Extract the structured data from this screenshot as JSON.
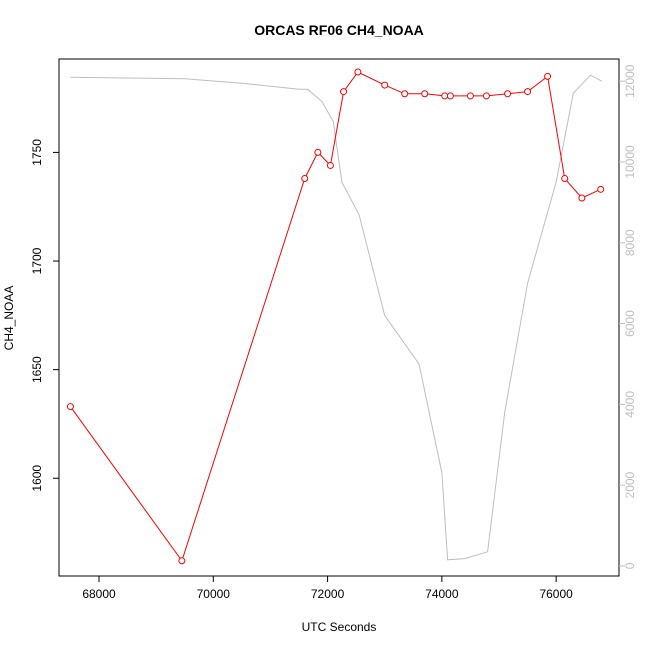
{
  "chart_data": {
    "type": "line",
    "title": "ORCAS RF06 CH4_NOAA",
    "xlabel": "UTC Seconds",
    "ylabel": "CH4_NOAA",
    "xlim": [
      67300,
      77100
    ],
    "ylim": [
      1555,
      1793
    ],
    "y2lim": [
      -250,
      12550
    ],
    "x_ticks": [
      68000,
      70000,
      72000,
      74000,
      76000
    ],
    "y_ticks": [
      1600,
      1650,
      1700,
      1750
    ],
    "y2_ticks": [
      0,
      2000,
      4000,
      6000,
      8000,
      10000,
      12000
    ],
    "series": [
      {
        "color": "#ff0000",
        "marker": "open-circle",
        "axis": "left",
        "x": [
          67500,
          69450,
          71600,
          71830,
          72050,
          72280,
          72530,
          73000,
          73350,
          73700,
          74050,
          74150,
          74500,
          74780,
          75150,
          75500,
          75850,
          76150,
          76450,
          76780
        ],
        "values": [
          1633,
          1562,
          1738,
          1750,
          1744,
          1778,
          1787,
          1781,
          1777,
          1777,
          1776,
          1776,
          1776,
          1776,
          1777,
          1778,
          1785,
          1738,
          1729,
          1733
        ]
      },
      {
        "color": "#bebebe",
        "marker": "none",
        "axis": "right",
        "x": [
          67500,
          68500,
          69500,
          70500,
          71500,
          71650,
          71900,
          72100,
          72250,
          72550,
          73000,
          73600,
          74000,
          74100,
          74400,
          74800,
          75100,
          75500,
          76000,
          76300,
          76600,
          76800
        ],
        "values": [
          12100,
          12080,
          12060,
          11950,
          11800,
          11800,
          11500,
          11000,
          9500,
          8700,
          6200,
          5000,
          2300,
          150,
          180,
          350,
          3800,
          7000,
          9500,
          11700,
          12150,
          12000
        ]
      }
    ]
  }
}
